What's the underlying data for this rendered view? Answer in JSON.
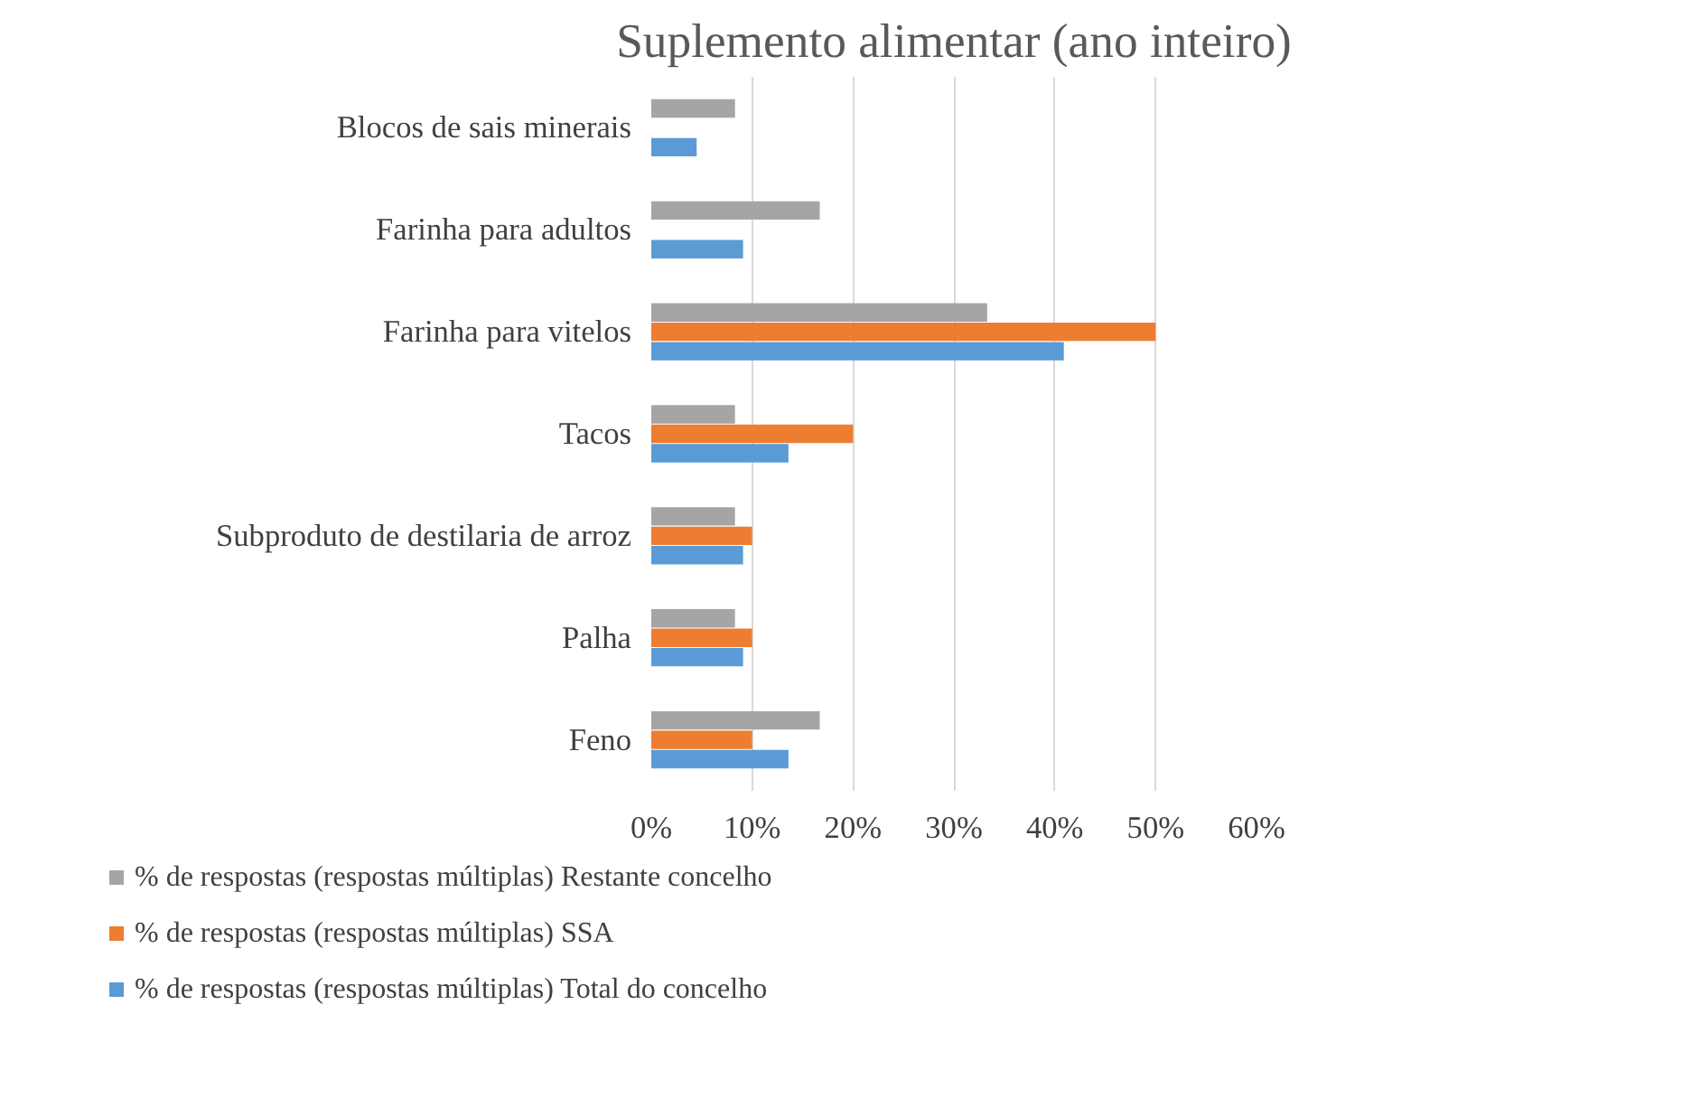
{
  "chart_data": {
    "type": "bar",
    "orientation": "horizontal",
    "title": "Suplemento alimentar (ano inteiro)",
    "categories": [
      "Blocos de sais minerais",
      "Farinha para adultos",
      "Farinha para vitelos",
      "Tacos",
      "Subproduto de destilaria de arroz",
      "Palha",
      "Feno"
    ],
    "series": [
      {
        "name": "% de respostas (respostas múltiplas) Restante concelho",
        "color": "#a5a5a5",
        "values": [
          8.3,
          16.7,
          33.3,
          8.3,
          8.3,
          8.3,
          16.7
        ]
      },
      {
        "name": "% de respostas (respostas múltiplas) SSA",
        "color": "#ed7d31",
        "values": [
          null,
          null,
          50,
          20,
          10,
          10,
          10
        ]
      },
      {
        "name": "% de respostas (respostas múltiplas) Total do concelho",
        "color": "#5b9bd5",
        "values": [
          4.5,
          9.1,
          40.9,
          13.6,
          9.1,
          9.1,
          13.6
        ]
      }
    ],
    "xlim": [
      0,
      60
    ],
    "xticks": [
      {
        "value": 0,
        "label": "0%"
      },
      {
        "value": 10,
        "label": "10%"
      },
      {
        "value": 20,
        "label": "20%"
      },
      {
        "value": 30,
        "label": "30%"
      },
      {
        "value": 40,
        "label": "40%"
      },
      {
        "value": 50,
        "label": "50%"
      },
      {
        "value": 60,
        "label": "60%"
      }
    ],
    "grid": "x",
    "legend": "bottom"
  }
}
